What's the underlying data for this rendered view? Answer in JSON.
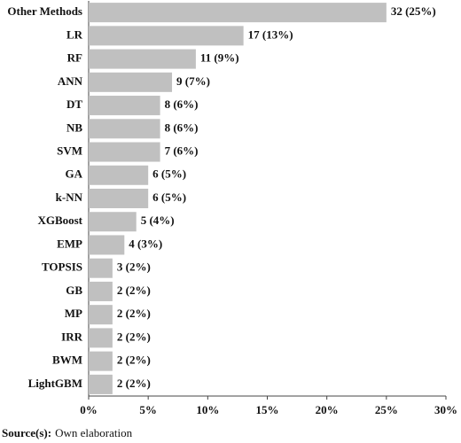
{
  "chart_data": {
    "type": "bar",
    "orientation": "horizontal",
    "categories": [
      "Other Methods",
      "LR",
      "RF",
      "ANN",
      "DT",
      "NB",
      "SVM",
      "GA",
      "k-NN",
      "XGBoost",
      "EMP",
      "TOPSIS",
      "GB",
      "MP",
      "IRR",
      "BWM",
      "LightGBM"
    ],
    "values": [
      25,
      13,
      9,
      7,
      6,
      6,
      6,
      5,
      5,
      4,
      3,
      2,
      2,
      2,
      2,
      2,
      2
    ],
    "value_labels": [
      "32 (25%)",
      "17 (13%)",
      "11 (9%)",
      "9 (7%)",
      "8 (6%)",
      "8 (6%)",
      "7 (6%)",
      "6 (5%)",
      "6 (5%)",
      "5 (4%)",
      "4 (3%)",
      "3 (2%)",
      "2 (2%)",
      "2 (2%)",
      "2 (2%)",
      "2 (2%)",
      "2 (2%)"
    ],
    "color": "#c0c0c0",
    "xlim": [
      0,
      30
    ],
    "xticks": [
      {
        "value": 0,
        "label": "0%"
      },
      {
        "value": 5,
        "label": "5%"
      },
      {
        "value": 10,
        "label": "10%"
      },
      {
        "value": 15,
        "label": "15%"
      },
      {
        "value": 20,
        "label": "20%"
      },
      {
        "value": 25,
        "label": "25%"
      },
      {
        "value": 30,
        "label": "30%"
      }
    ],
    "grid": false,
    "source_label": "Source(s):",
    "source_text": "Own elaboration"
  }
}
